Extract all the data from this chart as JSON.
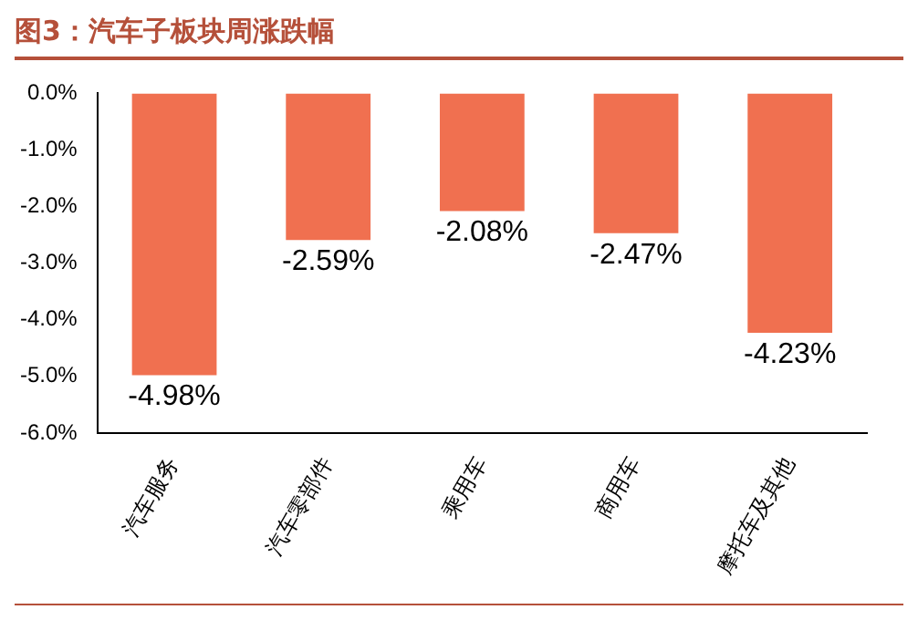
{
  "chart_data": {
    "type": "bar",
    "title": "图3：汽车子板块周涨跌幅",
    "categories": [
      "汽车服务",
      "汽车零部件",
      "乘用车",
      "商用车",
      "摩托车及其他"
    ],
    "values": [
      -4.98,
      -2.59,
      -2.08,
      -2.47,
      -4.23
    ],
    "value_labels": [
      "-4.98%",
      "-2.59%",
      "-2.08%",
      "-2.47%",
      "-4.23%"
    ],
    "color": "#f07050",
    "ylim": [
      -6,
      0
    ],
    "yticks": [
      {
        "value": 0,
        "label": "0.0%"
      },
      {
        "value": -1,
        "label": "-1.0%"
      },
      {
        "value": -2,
        "label": "-2.0%"
      },
      {
        "value": -3,
        "label": "-3.0%"
      },
      {
        "value": -4,
        "label": "-4.0%"
      },
      {
        "value": -5,
        "label": "-5.0%"
      },
      {
        "value": -6,
        "label": "-6.0%"
      }
    ],
    "grid": false,
    "legend": false
  }
}
